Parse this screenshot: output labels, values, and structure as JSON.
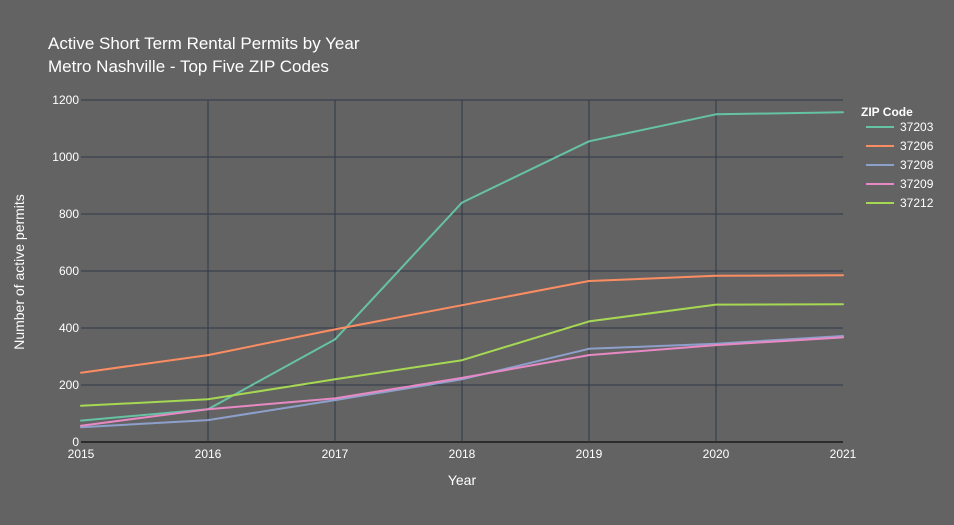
{
  "chart_data": {
    "type": "line",
    "title": "Active Short Term Rental Permits by Year",
    "subtitle": "Metro Nashville - Top Five ZIP Codes",
    "xlabel": "Year",
    "ylabel": "Number of active permits",
    "xlim": [
      2015,
      2021
    ],
    "ylim": [
      0,
      1200
    ],
    "x_ticks": [
      2015,
      2016,
      2017,
      2018,
      2019,
      2020,
      2021
    ],
    "y_ticks": [
      0,
      200,
      400,
      600,
      800,
      1000,
      1200
    ],
    "grid": true,
    "legend": {
      "title": "ZIP Code",
      "placement": "right"
    },
    "x": [
      2015,
      2016,
      2017,
      2018,
      2019,
      2020,
      2021
    ],
    "series": [
      {
        "name": "37203",
        "color": "#66c2a5",
        "values": [
          75,
          115,
          360,
          840,
          1055,
          1150,
          1157
        ]
      },
      {
        "name": "37206",
        "color": "#fc8d62",
        "values": [
          243,
          305,
          395,
          480,
          565,
          583,
          585
        ]
      },
      {
        "name": "37208",
        "color": "#8da0cb",
        "values": [
          52,
          77,
          147,
          220,
          327,
          345,
          372
        ]
      },
      {
        "name": "37209",
        "color": "#e78ac3",
        "values": [
          57,
          115,
          153,
          225,
          305,
          340,
          367
        ]
      },
      {
        "name": "37212",
        "color": "#a6d854",
        "values": [
          127,
          150,
          220,
          287,
          423,
          482,
          483
        ]
      }
    ]
  },
  "colors": {
    "background": "#636363",
    "grid": "#2f3a4a",
    "zero_line": "#1a1a1a",
    "text": "#ffffff"
  }
}
